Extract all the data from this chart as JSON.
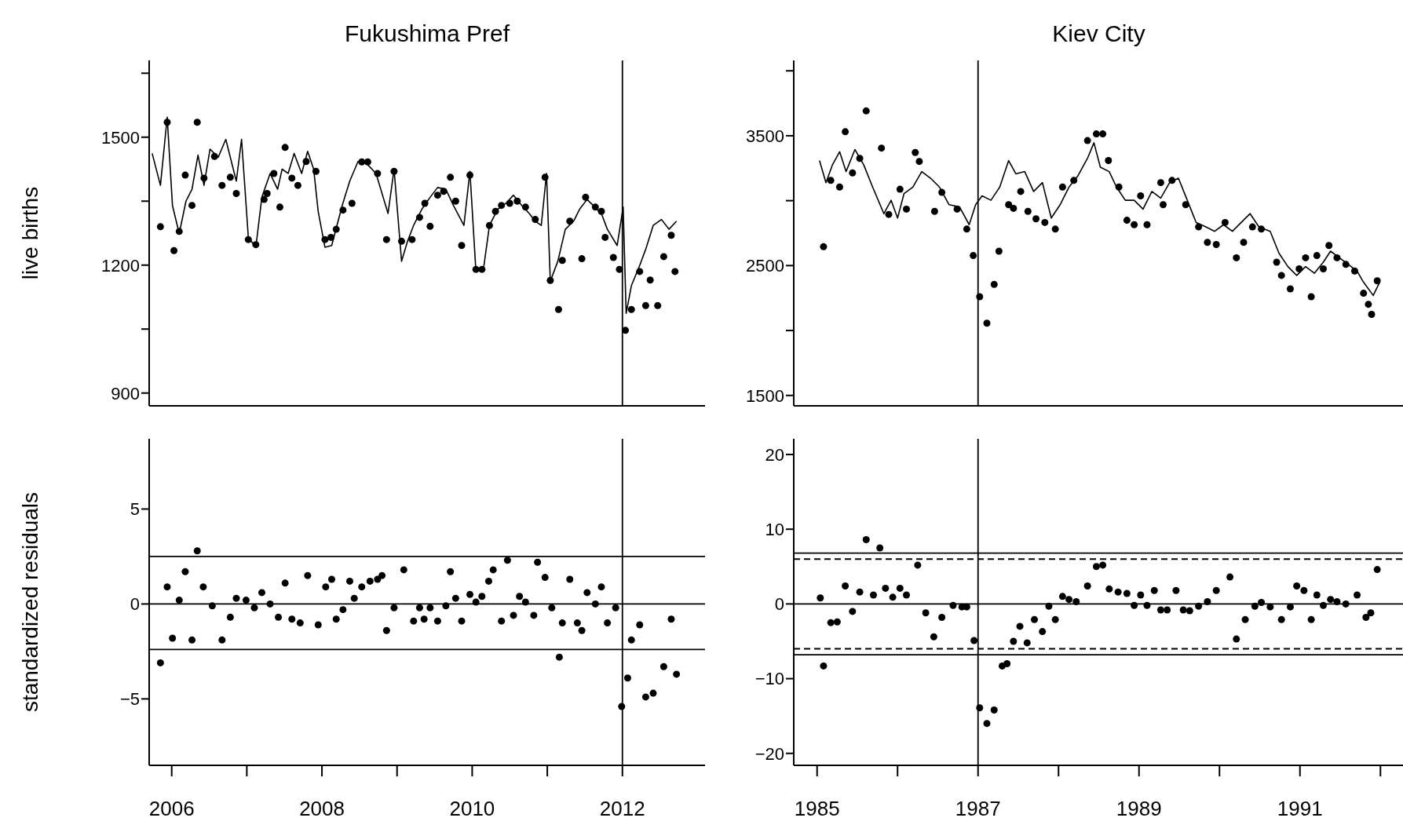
{
  "chart_data": [
    {
      "type": "line",
      "title": "Fukushima Pref",
      "ylabel": "live births",
      "xlim": [
        2005.7,
        2013.1
      ],
      "ylim": [
        870,
        1680
      ],
      "yticks": [
        900,
        {
          "value": 1050,
          "label": null
        },
        1200,
        {
          "value": 1350,
          "label": null
        },
        1500,
        {
          "value": 1650,
          "label": null
        }
      ],
      "tick_labels": "y",
      "ref_lines": [
        {
          "axis": "x",
          "value": 2012,
          "color": "#000000",
          "line_style": "solid"
        }
      ],
      "series": [
        {
          "color": "#000000",
          "marker": "none",
          "line_style": "solid",
          "x": [
            2005.74,
            2005.85,
            2005.94,
            2006.01,
            2006.1,
            2006.19,
            2006.27,
            2006.35,
            2006.43,
            2006.51,
            2006.62,
            2006.72,
            2006.86,
            2006.93,
            2007.02,
            2007.12,
            2007.2,
            2007.31,
            2007.41,
            2007.47,
            2007.55,
            2007.63,
            2007.73,
            2007.81,
            2007.89,
            2007.95,
            2008.04,
            2008.13,
            2008.27,
            2008.37,
            2008.48,
            2008.59,
            2008.72,
            2008.88,
            2008.96,
            2009.06,
            2009.14,
            2009.22,
            2009.33,
            2009.44,
            2009.54,
            2009.65,
            2009.75,
            2009.89,
            2009.97,
            2010.05,
            2010.15,
            2010.23,
            2010.34,
            2010.45,
            2010.55,
            2010.66,
            2010.76,
            2010.84,
            2010.92,
            2010.99,
            2011.04,
            2011.14,
            2011.24,
            2011.35,
            2011.43,
            2011.53,
            2011.61,
            2011.72,
            2011.8,
            2011.93,
            2012.01,
            2012.05,
            2012.12,
            2012.23,
            2012.31,
            2012.41,
            2012.52,
            2012.62,
            2012.72
          ],
          "values": [
            1462,
            1387,
            1547,
            1340,
            1274,
            1350,
            1378,
            1458,
            1387,
            1472,
            1453,
            1495,
            1397,
            1495,
            1265,
            1242,
            1359,
            1415,
            1378,
            1425,
            1415,
            1462,
            1415,
            1467,
            1425,
            1326,
            1242,
            1246,
            1340,
            1397,
            1443,
            1439,
            1415,
            1321,
            1425,
            1209,
            1256,
            1293,
            1331,
            1359,
            1382,
            1378,
            1340,
            1293,
            1420,
            1185,
            1190,
            1293,
            1331,
            1345,
            1364,
            1340,
            1321,
            1303,
            1293,
            1415,
            1162,
            1209,
            1284,
            1303,
            1331,
            1354,
            1340,
            1321,
            1284,
            1246,
            1336,
            1087,
            1152,
            1199,
            1237,
            1293,
            1307,
            1284,
            1303
          ]
        },
        {
          "type": "scatter",
          "color": "#000000",
          "marker": "circle",
          "x": [
            2005.85,
            2005.94,
            2006.03,
            2006.1,
            2006.18,
            2006.27,
            2006.34,
            2006.43,
            2006.57,
            2006.67,
            2006.78,
            2006.86,
            2007.02,
            2007.12,
            2007.23,
            2007.27,
            2007.36,
            2007.44,
            2007.51,
            2007.6,
            2007.68,
            2007.79,
            2007.92,
            2008.04,
            2008.12,
            2008.19,
            2008.28,
            2008.4,
            2008.53,
            2008.61,
            2008.74,
            2008.86,
            2008.96,
            2009.06,
            2009.2,
            2009.3,
            2009.37,
            2009.44,
            2009.54,
            2009.62,
            2009.71,
            2009.78,
            2009.86,
            2009.97,
            2010.05,
            2010.13,
            2010.23,
            2010.31,
            2010.39,
            2010.5,
            2010.6,
            2010.71,
            2010.84,
            2010.97,
            2011.04,
            2011.15,
            2011.2,
            2011.3,
            2011.46,
            2011.51,
            2011.64,
            2011.72,
            2011.77,
            2011.88,
            2011.96,
            2012.04,
            2012.12,
            2012.23,
            2012.31,
            2012.37,
            2012.47,
            2012.55,
            2012.65,
            2012.7
          ],
          "values": [
            1290,
            1535,
            1234,
            1279,
            1411,
            1340,
            1535,
            1404,
            1455,
            1387,
            1406,
            1368,
            1260,
            1248,
            1354,
            1368,
            1415,
            1336,
            1476,
            1404,
            1387,
            1443,
            1420,
            1260,
            1265,
            1284,
            1329,
            1345,
            1442,
            1442,
            1415,
            1260,
            1420,
            1256,
            1260,
            1312,
            1345,
            1291,
            1364,
            1373,
            1406,
            1350,
            1246,
            1411,
            1190,
            1190,
            1293,
            1326,
            1340,
            1345,
            1350,
            1336,
            1307,
            1406,
            1164,
            1096,
            1211,
            1303,
            1215,
            1359,
            1336,
            1326,
            1265,
            1218,
            1190,
            1047,
            1096,
            1185,
            1105,
            1165,
            1105,
            1220,
            1270,
            1185
          ]
        }
      ]
    },
    {
      "type": "line",
      "title": "Kiev City",
      "xlim": [
        1984.71,
        1992.29
      ],
      "ylim": [
        1420,
        4080
      ],
      "yticks": [
        1500,
        {
          "value": 2000,
          "label": null
        },
        2500,
        {
          "value": 3000,
          "label": null
        },
        3500,
        {
          "value": 4000,
          "label": null
        }
      ],
      "tick_labels": "y",
      "ref_lines": [
        {
          "axis": "x",
          "value": 1987,
          "color": "#000000",
          "line_style": "solid"
        }
      ],
      "series": [
        {
          "color": "#000000",
          "marker": "none",
          "line_style": "solid",
          "x": [
            1985.03,
            1985.11,
            1985.19,
            1985.28,
            1985.36,
            1985.47,
            1985.58,
            1985.69,
            1985.83,
            1985.92,
            1986.0,
            1986.08,
            1986.19,
            1986.3,
            1986.41,
            1986.52,
            1986.64,
            1986.77,
            1986.89,
            1986.97,
            1987.05,
            1987.16,
            1987.27,
            1987.38,
            1987.47,
            1987.58,
            1987.69,
            1987.8,
            1987.91,
            1988.02,
            1988.13,
            1988.24,
            1988.36,
            1988.44,
            1988.52,
            1988.63,
            1988.72,
            1988.83,
            1988.94,
            1989.05,
            1989.16,
            1989.27,
            1989.38,
            1989.49,
            1989.6,
            1989.71,
            1989.83,
            1989.94,
            1990.05,
            1990.16,
            1990.27,
            1990.38,
            1990.49,
            1990.63,
            1990.74,
            1990.85,
            1990.96,
            1991.07,
            1991.18,
            1991.29,
            1991.38,
            1991.49,
            1991.6,
            1991.71,
            1991.79,
            1991.91,
            1991.99
          ],
          "values": [
            3309,
            3139,
            3275,
            3377,
            3224,
            3394,
            3275,
            3105,
            2900,
            3003,
            2866,
            3054,
            3105,
            3224,
            3173,
            3105,
            2969,
            2952,
            2815,
            2969,
            3037,
            3003,
            3105,
            3309,
            3207,
            3224,
            3071,
            3139,
            2866,
            2969,
            3105,
            3190,
            3326,
            3446,
            3258,
            3224,
            3105,
            3003,
            3003,
            2935,
            3071,
            3020,
            3139,
            3173,
            3003,
            2832,
            2798,
            2764,
            2815,
            2764,
            2832,
            2900,
            2798,
            2764,
            2594,
            2492,
            2424,
            2492,
            2441,
            2526,
            2611,
            2560,
            2509,
            2458,
            2372,
            2270,
            2372
          ]
        },
        {
          "type": "scatter",
          "color": "#000000",
          "marker": "circle",
          "x": [
            1985.08,
            1985.17,
            1985.28,
            1985.35,
            1985.44,
            1985.53,
            1985.61,
            1985.8,
            1985.89,
            1986.03,
            1986.11,
            1986.22,
            1986.27,
            1986.46,
            1986.55,
            1986.74,
            1986.86,
            1986.94,
            1987.02,
            1987.11,
            1987.2,
            1987.26,
            1987.38,
            1987.44,
            1987.53,
            1987.62,
            1987.72,
            1987.83,
            1987.96,
            1988.05,
            1988.19,
            1988.36,
            1988.47,
            1988.55,
            1988.62,
            1988.75,
            1988.85,
            1988.94,
            1989.02,
            1989.1,
            1989.27,
            1989.3,
            1989.41,
            1989.58,
            1989.74,
            1989.85,
            1989.96,
            1990.07,
            1990.21,
            1990.3,
            1990.41,
            1990.52,
            1990.71,
            1990.77,
            1990.88,
            1990.99,
            1991.07,
            1991.14,
            1991.21,
            1991.29,
            1991.36,
            1991.46,
            1991.57,
            1991.68,
            1991.79,
            1991.85,
            1991.89,
            1991.96
          ],
          "values": [
            2645,
            3156,
            3105,
            3531,
            3214,
            3326,
            3691,
            3405,
            2894,
            3088,
            2935,
            3371,
            3302,
            2918,
            3064,
            2935,
            2781,
            2577,
            2260,
            2056,
            2355,
            2611,
            2969,
            2941,
            3071,
            2918,
            2860,
            2832,
            2781,
            3105,
            3156,
            3463,
            3514,
            3514,
            3309,
            3105,
            2849,
            2815,
            3037,
            2815,
            3139,
            2969,
            3156,
            2969,
            2798,
            2679,
            2662,
            2832,
            2560,
            2679,
            2798,
            2781,
            2526,
            2424,
            2321,
            2475,
            2560,
            2260,
            2577,
            2475,
            2655,
            2560,
            2509,
            2458,
            2287,
            2202,
            2124,
            2383
          ]
        }
      ]
    },
    {
      "type": "scatter",
      "ylabel": "standardized residuals",
      "xlim": [
        2005.7,
        2013.1
      ],
      "xticks": [
        2006,
        {
          "value": 2007,
          "label": null
        },
        2008,
        {
          "value": 2009,
          "label": null
        },
        2010,
        {
          "value": 2011,
          "label": null
        },
        2012
      ],
      "ylim": [
        -8.5,
        8.7
      ],
      "yticks": [
        -5,
        0,
        5
      ],
      "marker": "circle",
      "ref_lines": [
        {
          "axis": "y",
          "value": 0,
          "color": "#000000",
          "line_style": "solid"
        },
        {
          "axis": "y",
          "value": 2.5,
          "color": "#000000",
          "line_style": "solid"
        },
        {
          "axis": "y",
          "value": -2.4,
          "color": "#000000",
          "line_style": "solid"
        },
        {
          "axis": "x",
          "value": 2012,
          "color": "#000000",
          "line_style": "solid"
        }
      ],
      "series": [
        {
          "color": "#000000",
          "x": [
            2005.85,
            2005.94,
            2006.01,
            2006.1,
            2006.18,
            2006.27,
            2006.34,
            2006.42,
            2006.54,
            2006.67,
            2006.78,
            2006.86,
            2006.99,
            2007.1,
            2007.2,
            2007.31,
            2007.42,
            2007.51,
            2007.6,
            2007.71,
            2007.81,
            2007.95,
            2008.05,
            2008.13,
            2008.19,
            2008.28,
            2008.37,
            2008.43,
            2008.53,
            2008.64,
            2008.74,
            2008.8,
            2008.86,
            2008.96,
            2009.09,
            2009.22,
            2009.3,
            2009.36,
            2009.44,
            2009.54,
            2009.65,
            2009.71,
            2009.78,
            2009.86,
            2009.97,
            2010.05,
            2010.13,
            2010.22,
            2010.28,
            2010.39,
            2010.47,
            2010.55,
            2010.63,
            2010.71,
            2010.82,
            2010.87,
            2010.97,
            2011.06,
            2011.16,
            2011.2,
            2011.3,
            2011.4,
            2011.46,
            2011.53,
            2011.64,
            2011.72,
            2011.8,
            2011.91,
            2011.99,
            2012.07,
            2012.12,
            2012.23,
            2012.31,
            2012.41,
            2012.55,
            2012.65,
            2012.72
          ],
          "values": [
            -3.1,
            0.9,
            -1.8,
            0.2,
            1.7,
            -1.9,
            2.8,
            0.9,
            -0.1,
            -1.9,
            -0.7,
            0.3,
            0.2,
            -0.2,
            0.6,
            0.0,
            -0.7,
            1.1,
            -0.8,
            -1.0,
            1.5,
            -1.1,
            0.9,
            1.3,
            -0.8,
            -0.3,
            1.2,
            0.3,
            0.9,
            1.2,
            1.3,
            1.5,
            -1.4,
            -0.2,
            1.8,
            -0.9,
            -0.2,
            -0.8,
            -0.2,
            -0.9,
            -0.1,
            1.7,
            0.3,
            -0.9,
            0.5,
            0.1,
            0.4,
            1.2,
            1.8,
            -0.9,
            2.3,
            -0.6,
            0.4,
            0.1,
            -0.6,
            2.2,
            1.4,
            -0.2,
            -2.8,
            -1.0,
            1.3,
            -1.0,
            -1.4,
            0.6,
            0.0,
            0.9,
            -1.0,
            -0.2,
            -5.4,
            -3.9,
            -1.9,
            -1.1,
            -4.9,
            -4.7,
            -3.3,
            -0.8,
            -3.7
          ]
        }
      ]
    },
    {
      "type": "scatter",
      "xlim": [
        1984.71,
        1992.29
      ],
      "xticks": [
        1985,
        {
          "value": 1986,
          "label": null
        },
        1987,
        {
          "value": 1988,
          "label": null
        },
        1989,
        {
          "value": 1990,
          "label": null
        },
        1991,
        {
          "value": 1992,
          "label": null
        }
      ],
      "ylim": [
        -21.6,
        22.1
      ],
      "yticks": [
        -20,
        -10,
        0,
        10,
        20
      ],
      "marker": "circle",
      "ref_lines": [
        {
          "axis": "y",
          "value": 0,
          "color": "#000000",
          "line_style": "solid"
        },
        {
          "axis": "y",
          "value": 6.8,
          "color": "#000000",
          "line_style": "solid"
        },
        {
          "axis": "y",
          "value": 6.0,
          "color": "#000000",
          "line_style": "dashed"
        },
        {
          "axis": "y",
          "value": -6.0,
          "color": "#000000",
          "line_style": "dashed"
        },
        {
          "axis": "y",
          "value": -6.8,
          "color": "#000000",
          "line_style": "solid"
        },
        {
          "axis": "x",
          "value": 1987,
          "color": "#000000",
          "line_style": "solid"
        }
      ],
      "series": [
        {
          "color": "#000000",
          "x": [
            1985.04,
            1985.08,
            1985.17,
            1985.25,
            1985.35,
            1985.44,
            1985.53,
            1985.61,
            1985.7,
            1985.78,
            1985.85,
            1985.94,
            1986.03,
            1986.11,
            1986.25,
            1986.35,
            1986.45,
            1986.55,
            1986.69,
            1986.8,
            1986.86,
            1986.95,
            1987.02,
            1987.11,
            1987.2,
            1987.3,
            1987.36,
            1987.44,
            1987.52,
            1987.61,
            1987.7,
            1987.8,
            1987.88,
            1987.96,
            1988.05,
            1988.13,
            1988.22,
            1988.36,
            1988.47,
            1988.55,
            1988.63,
            1988.74,
            1988.85,
            1988.94,
            1989.02,
            1989.1,
            1989.19,
            1989.27,
            1989.35,
            1989.46,
            1989.55,
            1989.63,
            1989.74,
            1989.85,
            1989.96,
            1990.13,
            1990.21,
            1990.32,
            1990.44,
            1990.52,
            1990.63,
            1990.77,
            1990.88,
            1990.96,
            1991.05,
            1991.14,
            1991.21,
            1991.29,
            1991.38,
            1991.46,
            1991.57,
            1991.71,
            1991.82,
            1991.88,
            1991.96
          ],
          "values": [
            0.8,
            -8.3,
            -2.5,
            -2.4,
            2.4,
            -1.0,
            1.6,
            8.6,
            1.2,
            7.5,
            2.1,
            0.9,
            2.1,
            1.2,
            5.2,
            -1.2,
            -4.4,
            -1.8,
            -0.2,
            -0.4,
            -0.4,
            -4.9,
            -13.9,
            -16.0,
            -14.2,
            -8.3,
            -8.0,
            -5.0,
            -3.0,
            -5.2,
            -2.1,
            -3.7,
            -0.3,
            -2.1,
            1.0,
            0.6,
            0.3,
            2.4,
            5.0,
            5.2,
            2.0,
            1.6,
            1.4,
            -0.2,
            1.2,
            -0.2,
            1.8,
            -0.8,
            -0.8,
            1.8,
            -0.8,
            -0.9,
            -0.3,
            0.3,
            1.8,
            3.6,
            -4.7,
            -2.1,
            -0.3,
            0.2,
            -0.4,
            -2.1,
            -0.4,
            2.4,
            1.8,
            -2.1,
            1.2,
            -0.2,
            0.6,
            0.3,
            0.0,
            1.2,
            -1.8,
            -1.2,
            4.6
          ]
        }
      ]
    }
  ]
}
